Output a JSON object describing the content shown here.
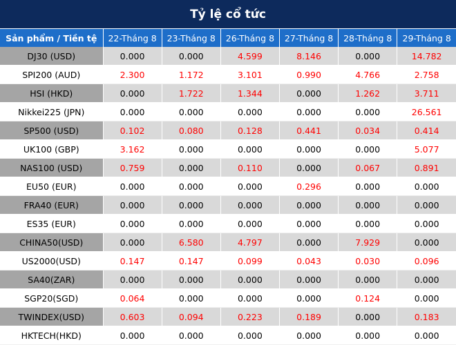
{
  "title": "Tỷ lệ cổ tức",
  "columns": [
    "Sản phẩm / Tiền tệ",
    "22-Tháng 8",
    "23-Tháng 8",
    "26-Tháng 8",
    "27-Tháng 8",
    "28-Tháng 8",
    "29-Tháng 8"
  ],
  "rows": [
    {
      "product": "DJ30 (USD)",
      "values": [
        "0.000",
        "0.000",
        "4.599",
        "8.146",
        "0.000",
        "14.782"
      ]
    },
    {
      "product": "SPI200 (AUD)",
      "values": [
        "2.300",
        "1.172",
        "3.101",
        "0.990",
        "4.766",
        "2.758"
      ]
    },
    {
      "product": "HSI (HKD)",
      "values": [
        "0.000",
        "1.722",
        "1.344",
        "0.000",
        "1.262",
        "3.711"
      ]
    },
    {
      "product": "Nikkei225 (JPN)",
      "values": [
        "0.000",
        "0.000",
        "0.000",
        "0.000",
        "0.000",
        "26.561"
      ]
    },
    {
      "product": "SP500 (USD)",
      "values": [
        "0.102",
        "0.080",
        "0.128",
        "0.441",
        "0.034",
        "0.414"
      ]
    },
    {
      "product": "UK100 (GBP)",
      "values": [
        "3.162",
        "0.000",
        "0.000",
        "0.000",
        "0.000",
        "5.077"
      ]
    },
    {
      "product": "NAS100 (USD)",
      "values": [
        "0.759",
        "0.000",
        "0.110",
        "0.000",
        "0.067",
        "0.891"
      ]
    },
    {
      "product": "EU50 (EUR)",
      "values": [
        "0.000",
        "0.000",
        "0.000",
        "0.296",
        "0.000",
        "0.000"
      ]
    },
    {
      "product": "FRA40 (EUR)",
      "values": [
        "0.000",
        "0.000",
        "0.000",
        "0.000",
        "0.000",
        "0.000"
      ]
    },
    {
      "product": "ES35 (EUR)",
      "values": [
        "0.000",
        "0.000",
        "0.000",
        "0.000",
        "0.000",
        "0.000"
      ]
    },
    {
      "product": "CHINA50(USD)",
      "values": [
        "0.000",
        "6.580",
        "4.797",
        "0.000",
        "7.929",
        "0.000"
      ]
    },
    {
      "product": "US2000(USD)",
      "values": [
        "0.147",
        "0.147",
        "0.099",
        "0.043",
        "0.030",
        "0.096"
      ]
    },
    {
      "product": "SA40(ZAR)",
      "values": [
        "0.000",
        "0.000",
        "0.000",
        "0.000",
        "0.000",
        "0.000"
      ]
    },
    {
      "product": "SGP20(SGD)",
      "values": [
        "0.064",
        "0.000",
        "0.000",
        "0.000",
        "0.124",
        "0.000"
      ]
    },
    {
      "product": "TWINDEX(USD)",
      "values": [
        "0.603",
        "0.094",
        "0.223",
        "0.189",
        "0.000",
        "0.183"
      ]
    },
    {
      "product": "HKTECH(HKD)",
      "values": [
        "0.000",
        "0.000",
        "0.000",
        "0.000",
        "0.000",
        "0.000"
      ]
    }
  ],
  "colors": {
    "title_bg": "#0d2a5c",
    "header_bg": "#1e6ec9",
    "row_shade": "#d9d9d9",
    "product_shade": "#a5a5a5",
    "positive_value": "#ff0000",
    "zero_value": "#000000"
  }
}
